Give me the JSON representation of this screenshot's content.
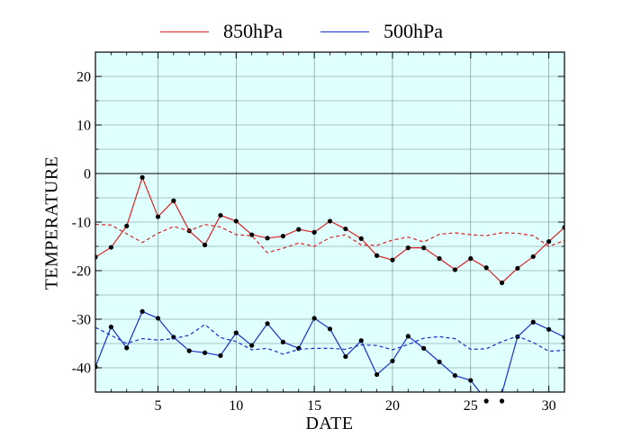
{
  "chart_data": {
    "type": "line",
    "xlabel": "DATE",
    "ylabel": "TEMPERATURE",
    "xlim": [
      1,
      31
    ],
    "ylim": [
      -45,
      25
    ],
    "x_ticks": [
      "5",
      "10",
      "15",
      "20",
      "25",
      "30"
    ],
    "y_ticks": [
      "20",
      "10",
      "0",
      "-10",
      "-20",
      "-30",
      "-40"
    ],
    "background": "#e0ffff",
    "grid": true,
    "legend_position": "top-center",
    "series": [
      {
        "name": "850hPa",
        "color": "#dd2222",
        "style": "solid-markers",
        "x": [
          1,
          2,
          3,
          4,
          5,
          6,
          7,
          8,
          9,
          10,
          11,
          12,
          13,
          14,
          15,
          16,
          17,
          18,
          19,
          20,
          21,
          22,
          23,
          24,
          25,
          26,
          27,
          28,
          29,
          30,
          31
        ],
        "y": [
          -17.2,
          -15.2,
          -10.8,
          -0.8,
          -8.9,
          -5.6,
          -11.8,
          -14.7,
          -8.6,
          -9.8,
          -12.6,
          -13.3,
          -12.9,
          -11.5,
          -12.1,
          -9.8,
          -11.4,
          -13.4,
          -16.9,
          -17.8,
          -15.3,
          -15.3,
          -17.5,
          -19.8,
          -17.5,
          -19.4,
          -22.5,
          -19.5,
          -17.1,
          -14.0,
          -11.1
        ]
      },
      {
        "name": "500hPa",
        "color": "#1a2fcc",
        "style": "solid-markers",
        "x": [
          1,
          2,
          3,
          4,
          5,
          6,
          7,
          8,
          9,
          10,
          11,
          12,
          13,
          14,
          15,
          16,
          17,
          18,
          19,
          20,
          21,
          22,
          23,
          24,
          25,
          26,
          27,
          28,
          29,
          30,
          31
        ],
        "y": [
          -39.8,
          -31.6,
          -35.9,
          -28.4,
          -29.8,
          -33.7,
          -36.5,
          -36.9,
          -37.5,
          -32.8,
          -35.4,
          -30.9,
          -34.7,
          -36.0,
          -29.8,
          -32.0,
          -37.7,
          -34.4,
          -41.4,
          -38.6,
          -33.5,
          -36.0,
          -38.8,
          -41.6,
          -42.6,
          -46.7,
          -45.3,
          -33.6,
          -30.6,
          -32.1,
          -33.7
        ]
      },
      {
        "name": "850hPa (dashed)",
        "color": "#dd2222",
        "style": "dashed",
        "x": [
          1,
          2,
          3,
          4,
          5,
          6,
          7,
          8,
          9,
          10,
          11,
          12,
          13,
          14,
          15,
          16,
          17,
          18,
          19,
          20,
          21,
          22,
          23,
          24,
          25,
          26,
          27,
          28,
          29,
          30,
          31
        ],
        "y": [
          -10.5,
          -10.6,
          -12.4,
          -14.2,
          -12.3,
          -10.9,
          -11.8,
          -10.5,
          -11.0,
          -12.6,
          -12.8,
          -16.3,
          -15.4,
          -14.3,
          -15.0,
          -13.2,
          -12.6,
          -14.7,
          -14.8,
          -13.7,
          -13.1,
          -14.1,
          -12.5,
          -12.2,
          -12.6,
          -12.8,
          -12.2,
          -12.3,
          -12.8,
          -15.0,
          -13.8
        ]
      },
      {
        "name": "500hPa (dashed)",
        "color": "#1a2fcc",
        "style": "dashed",
        "x": [
          1,
          2,
          3,
          4,
          5,
          6,
          7,
          8,
          9,
          10,
          11,
          12,
          13,
          14,
          15,
          16,
          17,
          18,
          19,
          20,
          21,
          22,
          23,
          24,
          25,
          26,
          27,
          28,
          29,
          30,
          31
        ],
        "y": [
          -31.7,
          -33.3,
          -35.0,
          -34.0,
          -34.3,
          -34.0,
          -33.3,
          -31.1,
          -33.8,
          -34.6,
          -36.3,
          -36.0,
          -37.2,
          -36.2,
          -36.0,
          -36.0,
          -36.2,
          -35.3,
          -35.4,
          -36.3,
          -35.2,
          -33.9,
          -33.6,
          -34.0,
          -36.2,
          -36.1,
          -34.6,
          -33.5,
          -34.8,
          -36.6,
          -36.4
        ]
      }
    ]
  },
  "legend": {
    "items": [
      {
        "label": "850hPa",
        "color": "#dd2222"
      },
      {
        "label": "500hPa",
        "color": "#1a2fcc"
      }
    ]
  }
}
